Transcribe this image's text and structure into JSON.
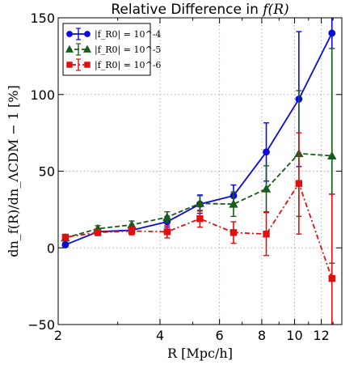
{
  "chart_data": {
    "type": "line",
    "title_prefix": "Relative Difference in ",
    "title_math": "f(R)",
    "xlabel": "R [Mpc/h]",
    "ylabel": "dn_f(R)/dn_ΛCDM − 1 [%]",
    "x_scale": "log",
    "xlim": [
      2.0,
      13.8
    ],
    "ylim": [
      -50,
      150
    ],
    "x_ticks": [
      2,
      4,
      6,
      8,
      10,
      12
    ],
    "x_tick_labels": [
      "2",
      "4",
      "6",
      "8",
      "10",
      "12"
    ],
    "y_ticks": [
      -50,
      0,
      50,
      100,
      150
    ],
    "y_tick_labels": [
      "−50",
      "0",
      "50",
      "100",
      "150"
    ],
    "grid": true,
    "legend_position": "top-left",
    "series": [
      {
        "name": "|f_R0| = 10^-4",
        "color": "#0a0adf",
        "marker": "circle",
        "line_style": "solid",
        "x": [
          2.1,
          2.62,
          3.3,
          4.2,
          5.25,
          6.6,
          8.25,
          10.3,
          12.9
        ],
        "y": [
          2,
          10.5,
          11.5,
          17,
          28.5,
          34,
          62.5,
          97,
          140
        ],
        "err": [
          1.5,
          2,
          2.5,
          3.5,
          6,
          7,
          19,
          44,
          105
        ]
      },
      {
        "name": "|f_R0| = 10^-5",
        "color": "#1a5c1a",
        "marker": "triangle",
        "line_style": "dashed",
        "x": [
          2.1,
          2.62,
          3.3,
          4.2,
          5.25,
          6.6,
          8.25,
          10.3,
          12.9
        ],
        "y": [
          6.5,
          12.5,
          15,
          20,
          29,
          28.5,
          38.5,
          61.5,
          60
        ],
        "err": [
          1.5,
          2,
          2.5,
          3.5,
          5,
          8,
          15,
          41,
          70
        ]
      },
      {
        "name": "|f_R0| = 10^-6",
        "color": "#e01010",
        "marker": "square",
        "line_style": "dashdot",
        "x": [
          2.1,
          2.62,
          3.3,
          4.2,
          5.25,
          6.6,
          8.25,
          10.3,
          12.9
        ],
        "y": [
          7,
          10,
          11,
          10.5,
          19,
          10,
          9,
          42,
          -20
        ],
        "err": [
          1.5,
          2,
          2.5,
          4,
          5.5,
          7,
          14,
          33,
          55
        ]
      }
    ]
  }
}
